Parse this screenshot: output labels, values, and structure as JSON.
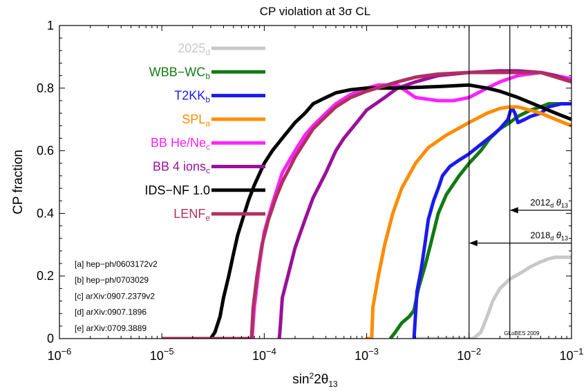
{
  "chart_data": {
    "type": "line",
    "title": "CP violation at 3σ CL",
    "xlabel": "sin²2θ13",
    "ylabel": "CP fraction",
    "xscale": "log",
    "xlim": [
      1e-06,
      0.1
    ],
    "ylim": [
      0,
      1
    ],
    "grid": false,
    "legend_position": "left",
    "x_tick_labels": [
      "10−6",
      "10−5",
      "10−4",
      "10−3",
      "10−2",
      "10−1"
    ],
    "y_tick_labels": [
      "0",
      "0.2",
      "0.4",
      "0.6",
      "0.8",
      "1"
    ],
    "series": [
      {
        "name": "2025",
        "sub": "d",
        "color": "#c8c8c8",
        "points": [
          [
            0.003,
            0
          ],
          [
            0.006,
            0
          ],
          [
            0.009,
            0
          ],
          [
            0.011,
            0
          ],
          [
            0.013,
            0.02
          ],
          [
            0.015,
            0.07
          ],
          [
            0.017,
            0.12
          ],
          [
            0.02,
            0.16
          ],
          [
            0.025,
            0.19
          ],
          [
            0.032,
            0.21
          ],
          [
            0.04,
            0.23
          ],
          [
            0.05,
            0.245
          ],
          [
            0.06,
            0.255
          ],
          [
            0.07,
            0.26
          ],
          [
            0.1,
            0.26
          ]
        ]
      },
      {
        "name": "WBB−WC",
        "sub": "b",
        "color": "#117a11",
        "points": [
          [
            0.0017,
            0
          ],
          [
            0.0019,
            0.02
          ],
          [
            0.0022,
            0.05
          ],
          [
            0.0026,
            0.07
          ],
          [
            0.0029,
            0.09
          ],
          [
            0.0032,
            0.16
          ],
          [
            0.0037,
            0.23
          ],
          [
            0.0042,
            0.3
          ],
          [
            0.005,
            0.4
          ],
          [
            0.006,
            0.46
          ],
          [
            0.008,
            0.52
          ],
          [
            0.01,
            0.56
          ],
          [
            0.013,
            0.6
          ],
          [
            0.016,
            0.64
          ],
          [
            0.02,
            0.67
          ],
          [
            0.025,
            0.69
          ],
          [
            0.03,
            0.71
          ],
          [
            0.04,
            0.73
          ],
          [
            0.05,
            0.74
          ],
          [
            0.06,
            0.75
          ],
          [
            0.1,
            0.75
          ]
        ]
      },
      {
        "name": "T2KK",
        "sub": "b",
        "color": "#1a1aee",
        "points": [
          [
            0.0029,
            0
          ],
          [
            0.0031,
            0.15
          ],
          [
            0.0034,
            0.22
          ],
          [
            0.0037,
            0.3
          ],
          [
            0.004,
            0.38
          ],
          [
            0.0045,
            0.44
          ],
          [
            0.005,
            0.48
          ],
          [
            0.0055,
            0.52
          ],
          [
            0.0065,
            0.55
          ],
          [
            0.008,
            0.57
          ],
          [
            0.01,
            0.59
          ],
          [
            0.013,
            0.62
          ],
          [
            0.017,
            0.65
          ],
          [
            0.02,
            0.67
          ],
          [
            0.024,
            0.7
          ],
          [
            0.026,
            0.74
          ],
          [
            0.028,
            0.72
          ],
          [
            0.03,
            0.69
          ],
          [
            0.035,
            0.7
          ],
          [
            0.04,
            0.71
          ],
          [
            0.05,
            0.72
          ],
          [
            0.06,
            0.74
          ],
          [
            0.08,
            0.75
          ],
          [
            0.1,
            0.75
          ]
        ]
      },
      {
        "name": "SPL",
        "sub": "a",
        "color": "#ff8c00",
        "points": [
          [
            0.00098,
            0
          ],
          [
            0.00112,
            0
          ],
          [
            0.00115,
            0.1
          ],
          [
            0.0013,
            0.2
          ],
          [
            0.0015,
            0.3
          ],
          [
            0.0018,
            0.4
          ],
          [
            0.0022,
            0.48
          ],
          [
            0.003,
            0.56
          ],
          [
            0.004,
            0.61
          ],
          [
            0.006,
            0.65
          ],
          [
            0.01,
            0.69
          ],
          [
            0.015,
            0.72
          ],
          [
            0.02,
            0.735
          ],
          [
            0.025,
            0.74
          ],
          [
            0.03,
            0.74
          ],
          [
            0.05,
            0.72
          ],
          [
            0.07,
            0.7
          ],
          [
            0.1,
            0.68
          ]
        ]
      },
      {
        "name": "BB He/Ne",
        "sub": "c",
        "color": "#ff22ff",
        "points": [
          [
            7.6e-05,
            0
          ],
          [
            8e-05,
            0.1
          ],
          [
            9e-05,
            0.24
          ],
          [
            0.0001,
            0.34
          ],
          [
            0.00012,
            0.43
          ],
          [
            0.00015,
            0.53
          ],
          [
            0.0002,
            0.6
          ],
          [
            0.00025,
            0.65
          ],
          [
            0.0003,
            0.68
          ],
          [
            0.0004,
            0.72
          ],
          [
            0.0005,
            0.75
          ],
          [
            0.0007,
            0.78
          ],
          [
            0.001,
            0.8
          ],
          [
            0.0013,
            0.81
          ],
          [
            0.002,
            0.81
          ],
          [
            0.003,
            0.77
          ],
          [
            0.005,
            0.76
          ],
          [
            0.007,
            0.76
          ],
          [
            0.01,
            0.77
          ],
          [
            0.015,
            0.8
          ],
          [
            0.02,
            0.82
          ],
          [
            0.03,
            0.84
          ],
          [
            0.05,
            0.85
          ],
          [
            0.07,
            0.84
          ],
          [
            0.1,
            0.83
          ]
        ]
      },
      {
        "name": "BB 4 ions",
        "sub": "c",
        "color": "#991199",
        "points": [
          [
            0.00014,
            0
          ],
          [
            0.000142,
            0.02
          ],
          [
            0.000145,
            0.06
          ],
          [
            0.00015,
            0.13
          ],
          [
            0.00017,
            0.2
          ],
          [
            0.0002,
            0.29
          ],
          [
            0.00025,
            0.38
          ],
          [
            0.0003,
            0.45
          ],
          [
            0.0004,
            0.53
          ],
          [
            0.0005,
            0.6
          ],
          [
            0.0006,
            0.64
          ],
          [
            0.0008,
            0.69
          ],
          [
            0.001,
            0.73
          ],
          [
            0.0015,
            0.77
          ],
          [
            0.002,
            0.8
          ],
          [
            0.003,
            0.82
          ],
          [
            0.005,
            0.84
          ],
          [
            0.01,
            0.85
          ],
          [
            0.02,
            0.855
          ],
          [
            0.03,
            0.855
          ],
          [
            0.05,
            0.85
          ],
          [
            0.07,
            0.84
          ],
          [
            0.1,
            0.82
          ]
        ]
      },
      {
        "name": "IDS−NF 1.0",
        "sub": "",
        "color": "#000000",
        "points": [
          [
            3e-05,
            0
          ],
          [
            3.3e-05,
            0.02
          ],
          [
            3.7e-05,
            0.07
          ],
          [
            4e-05,
            0.13
          ],
          [
            4.5e-05,
            0.2
          ],
          [
            5e-05,
            0.27
          ],
          [
            5.5e-05,
            0.33
          ],
          [
            6e-05,
            0.37
          ],
          [
            7e-05,
            0.44
          ],
          [
            8e-05,
            0.49
          ],
          [
            0.0001,
            0.56
          ],
          [
            0.00012,
            0.6
          ],
          [
            0.00015,
            0.64
          ],
          [
            0.0002,
            0.69
          ],
          [
            0.00025,
            0.72
          ],
          [
            0.0003,
            0.75
          ],
          [
            0.0004,
            0.77
          ],
          [
            0.0005,
            0.785
          ],
          [
            0.0007,
            0.795
          ],
          [
            0.001,
            0.8
          ],
          [
            0.002,
            0.8
          ],
          [
            0.005,
            0.805
          ],
          [
            0.01,
            0.81
          ],
          [
            0.015,
            0.8
          ],
          [
            0.02,
            0.79
          ],
          [
            0.03,
            0.77
          ],
          [
            0.05,
            0.74
          ],
          [
            0.07,
            0.72
          ],
          [
            0.1,
            0.7
          ]
        ]
      },
      {
        "name": "LENF",
        "sub": "e",
        "color": "#b03060",
        "points": [
          [
            1e-05,
            0
          ],
          [
            7.5e-05,
            0
          ],
          [
            7.8e-05,
            0.1
          ],
          [
            8.5e-05,
            0.2
          ],
          [
            9.5e-05,
            0.3
          ],
          [
            0.00011,
            0.38
          ],
          [
            0.00013,
            0.45
          ],
          [
            0.00015,
            0.5
          ],
          [
            0.00018,
            0.55
          ],
          [
            0.0002,
            0.58
          ],
          [
            0.00025,
            0.63
          ],
          [
            0.0003,
            0.67
          ],
          [
            0.0004,
            0.71
          ],
          [
            0.0005,
            0.74
          ],
          [
            0.0007,
            0.77
          ],
          [
            0.001,
            0.79
          ],
          [
            0.002,
            0.82
          ],
          [
            0.003,
            0.835
          ],
          [
            0.005,
            0.845
          ],
          [
            0.01,
            0.85
          ],
          [
            0.02,
            0.85
          ],
          [
            0.03,
            0.85
          ],
          [
            0.05,
            0.85
          ],
          [
            0.1,
            0.82
          ]
        ]
      }
    ],
    "vertical_lines": [
      0.01,
      0.025
    ],
    "annotations": [
      {
        "name": "2012",
        "sub": "d",
        "theta": "θ",
        "theta_sub": "13",
        "line_x": 0.025,
        "y": 0.41
      },
      {
        "name": "2018",
        "sub": "d",
        "theta": "θ",
        "theta_sub": "13",
        "line_x": 0.01,
        "y": 0.305
      }
    ],
    "references": [
      "[a] hep−ph/0603172v2",
      "[b] hep−ph/0703029",
      "[c] arXiv:0907.2379v2",
      "[d] arXiv:0907.1896",
      "[e] arXiv:0709.3889"
    ],
    "credit": "GLoBES 2009"
  }
}
